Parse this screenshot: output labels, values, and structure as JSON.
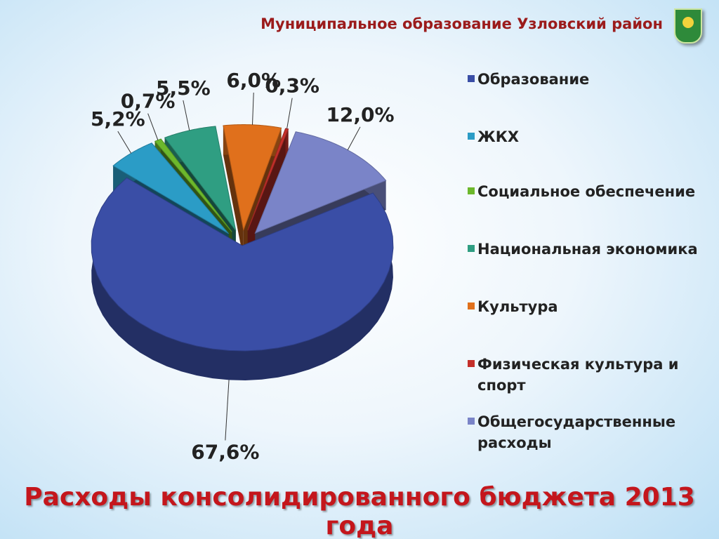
{
  "header": {
    "title": "Муниципальное образование Узловский район"
  },
  "chart_data": {
    "type": "pie",
    "title": "Расходы консолидированного бюджета 2013 года",
    "categories": [
      "Образование",
      "ЖКХ",
      "Социальное обеспечение",
      "Национальная экономика",
      "Культура",
      "Физическая культура и спорт",
      "Общегосударственные расходы"
    ],
    "values": [
      67.6,
      5.2,
      0.7,
      5.5,
      6.0,
      0.3,
      12.0
    ],
    "value_labels": [
      "67,6%",
      "5,2%",
      "0,7%",
      "5,5%",
      "6,0%",
      "0,3%",
      "12,0%"
    ],
    "colors": [
      "#3a4ea6",
      "#2b9cc6",
      "#6cb82c",
      "#2f9e82",
      "#e0701c",
      "#c4302a",
      "#7a84c8"
    ]
  }
}
